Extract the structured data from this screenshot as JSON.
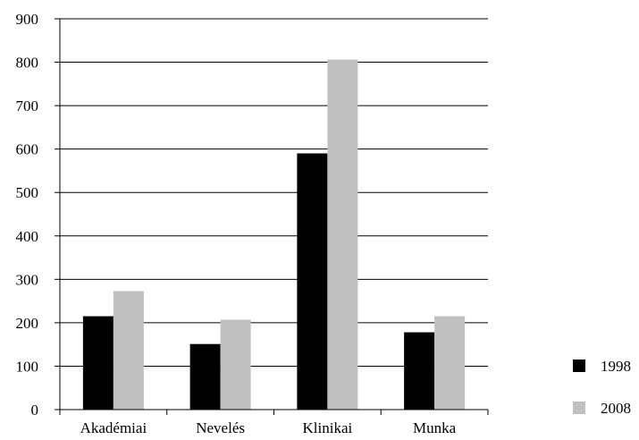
{
  "chart_data": {
    "type": "bar",
    "title": "",
    "xlabel": "",
    "ylabel": "",
    "categories": [
      "Akadémiai",
      "Nevelés",
      "Klinikai",
      "Munka"
    ],
    "series": [
      {
        "name": "1998",
        "values": [
          215,
          151,
          590,
          178
        ],
        "color": "#000000"
      },
      {
        "name": "2008",
        "values": [
          273,
          207,
          806,
          215
        ],
        "color": "#c0c0c0"
      }
    ],
    "ylim": [
      0,
      900
    ],
    "yticks": [
      "0",
      "100",
      "200",
      "300",
      "400",
      "500",
      "600",
      "700",
      "800",
      "900"
    ],
    "grid": true,
    "legend_position": "right-bottom"
  }
}
